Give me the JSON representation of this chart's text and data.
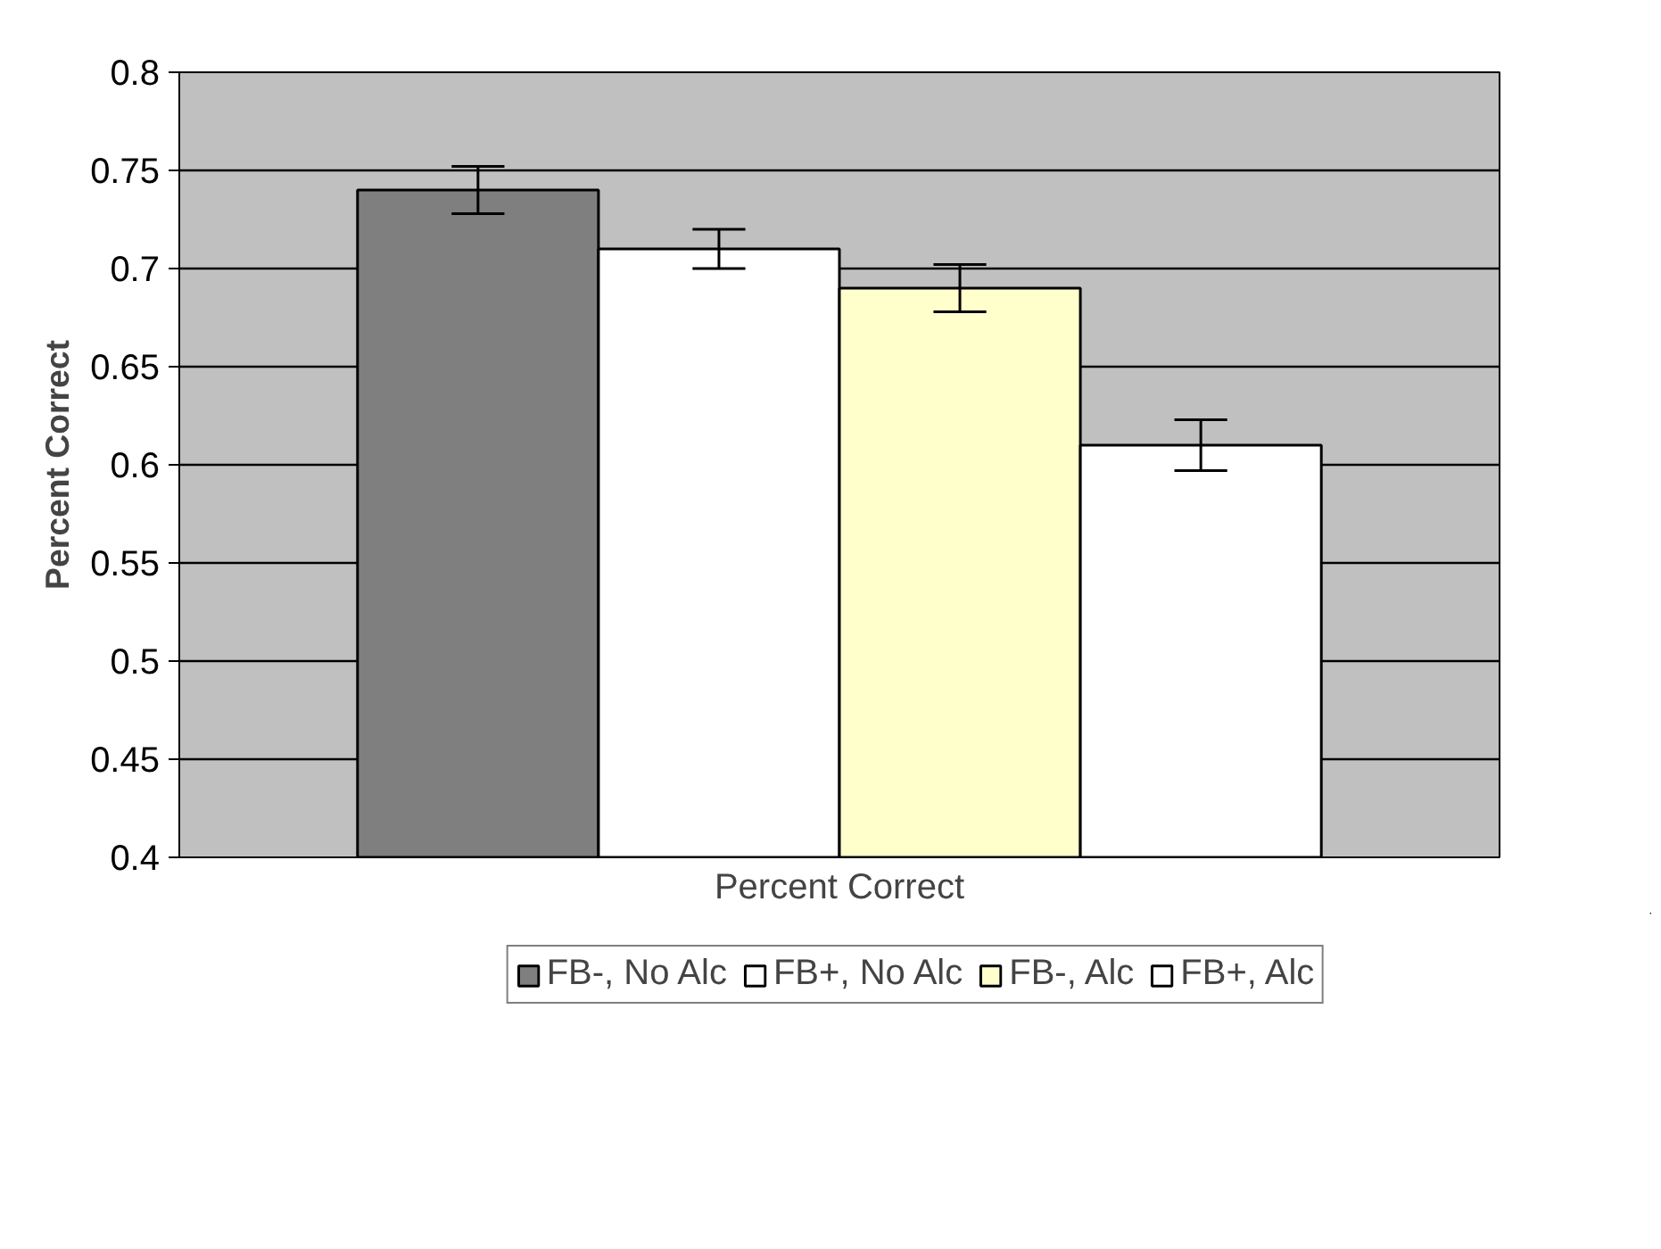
{
  "chart_data": {
    "type": "bar",
    "xlabel": "Percent Correct",
    "ylabel": "Percent Correct",
    "categories": [
      null
    ],
    "series": [
      {
        "name": "FB-, No Alc",
        "color": "#7f7f7f",
        "values": [
          0.74
        ],
        "errors": [
          0.012
        ]
      },
      {
        "name": "FB+, No Alc",
        "color": "#ffffff",
        "values": [
          0.71
        ],
        "errors": [
          0.01
        ]
      },
      {
        "name": "FB-, Alc",
        "color": "#ffffcc",
        "values": [
          0.69
        ],
        "errors": [
          0.012
        ]
      },
      {
        "name": "FB+, Alc",
        "color": "#ffffff",
        "values": [
          0.61
        ],
        "errors": [
          0.013
        ]
      }
    ],
    "ylim": [
      0.4,
      0.8
    ],
    "yticks": [
      0.4,
      0.45,
      0.5,
      0.55,
      0.6,
      0.65,
      0.7,
      0.75,
      0.8
    ],
    "grid": "y",
    "legend": "bottom"
  }
}
